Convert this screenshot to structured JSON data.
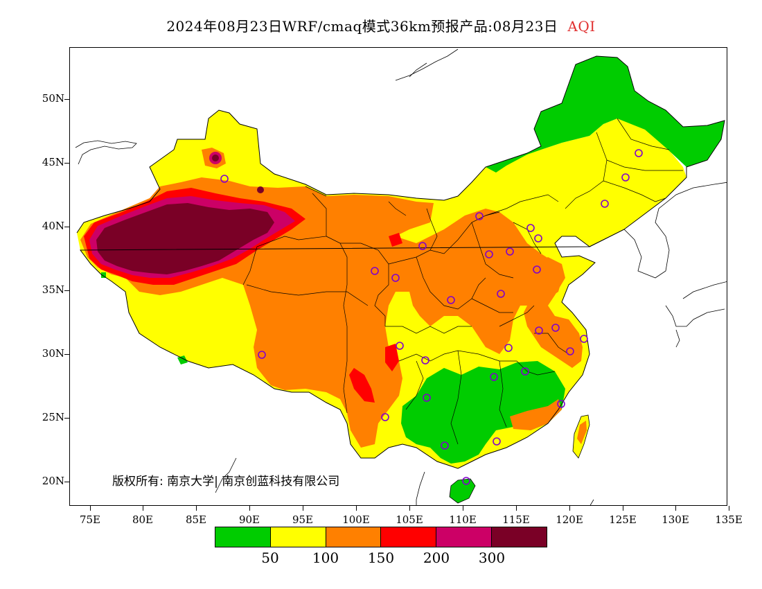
{
  "header": {
    "title": "2024年08月23日WRF/cmaq模式36km预报产品:08月23日",
    "variable": "AQI"
  },
  "map": {
    "lat_labels": [
      "50N",
      "45N",
      "40N",
      "35N",
      "30N",
      "25N",
      "20N"
    ],
    "lon_labels": [
      "75E",
      "80E",
      "85E",
      "90E",
      "95E",
      "100E",
      "105E",
      "110E",
      "115E",
      "120E",
      "125E",
      "130E",
      "135E"
    ],
    "extent": {
      "lon_min": 73,
      "lon_max": 135,
      "lat_min": 18,
      "lat_max": 54
    },
    "colors": {
      "good": "#00cc00",
      "moderate": "#ffff00",
      "usg": "#ff8000",
      "unhealthy": "#ff0000",
      "very_unhealthy": "#cc0066",
      "hazardous": "#7a0026",
      "station_marker": "#8000cc"
    }
  },
  "copyright": "版权所有: 南京大学| 南京创蓝科技有限公司",
  "legend": {
    "colors": [
      "#00cc00",
      "#ffff00",
      "#ff8000",
      "#ff0000",
      "#cc0066",
      "#7a0026"
    ],
    "labels": [
      "50",
      "100",
      "150",
      "200",
      "300"
    ]
  }
}
